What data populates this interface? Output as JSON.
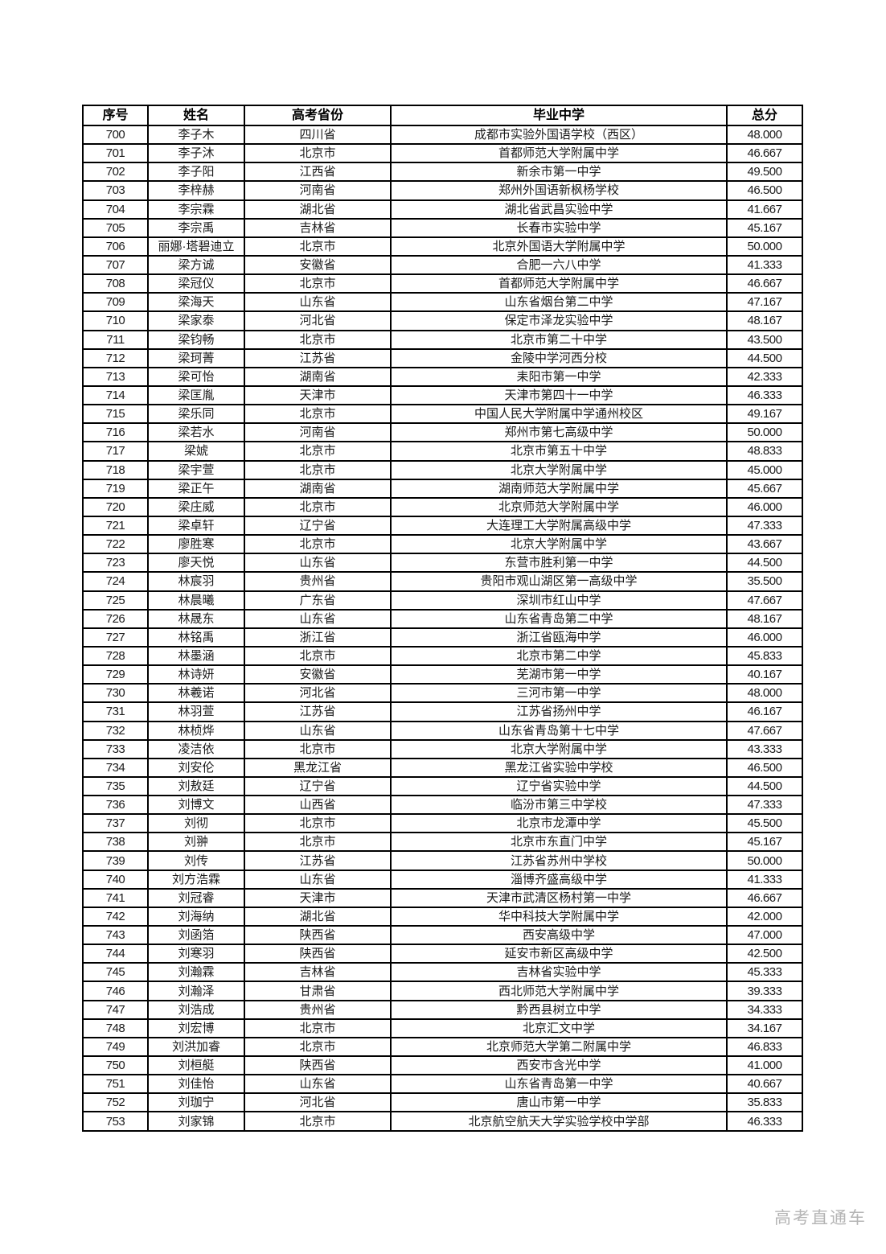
{
  "table": {
    "columns": [
      "序号",
      "姓名",
      "高考省份",
      "毕业中学",
      "总分"
    ],
    "rows": [
      [
        "700",
        "李子木",
        "四川省",
        "成都市实验外国语学校（西区）",
        "48.000"
      ],
      [
        "701",
        "李子沐",
        "北京市",
        "首都师范大学附属中学",
        "46.667"
      ],
      [
        "702",
        "李子阳",
        "江西省",
        "新余市第一中学",
        "49.500"
      ],
      [
        "703",
        "李梓赫",
        "河南省",
        "郑州外国语新枫杨学校",
        "46.500"
      ],
      [
        "704",
        "李宗霖",
        "湖北省",
        "湖北省武昌实验中学",
        "41.667"
      ],
      [
        "705",
        "李宗禹",
        "吉林省",
        "长春市实验中学",
        "45.167"
      ],
      [
        "706",
        "丽娜·塔碧迪立",
        "北京市",
        "北京外国语大学附属中学",
        "50.000"
      ],
      [
        "707",
        "梁方诚",
        "安徽省",
        "合肥一六八中学",
        "41.333"
      ],
      [
        "708",
        "梁冠仪",
        "北京市",
        "首都师范大学附属中学",
        "46.667"
      ],
      [
        "709",
        "梁海天",
        "山东省",
        "山东省烟台第二中学",
        "47.167"
      ],
      [
        "710",
        "梁家泰",
        "河北省",
        "保定市泽龙实验中学",
        "48.167"
      ],
      [
        "711",
        "梁钧畅",
        "北京市",
        "北京市第二十中学",
        "43.500"
      ],
      [
        "712",
        "梁珂菁",
        "江苏省",
        "金陵中学河西分校",
        "44.500"
      ],
      [
        "713",
        "梁可怡",
        "湖南省",
        "耒阳市第一中学",
        "42.333"
      ],
      [
        "714",
        "梁匡胤",
        "天津市",
        "天津市第四十一中学",
        "46.333"
      ],
      [
        "715",
        "梁乐同",
        "北京市",
        "中国人民大学附属中学通州校区",
        "49.167"
      ],
      [
        "716",
        "梁若水",
        "河南省",
        "郑州市第七高级中学",
        "50.000"
      ],
      [
        "717",
        "梁婋",
        "北京市",
        "北京市第五十中学",
        "48.833"
      ],
      [
        "718",
        "梁宇萱",
        "北京市",
        "北京大学附属中学",
        "45.000"
      ],
      [
        "719",
        "梁正午",
        "湖南省",
        "湖南师范大学附属中学",
        "45.667"
      ],
      [
        "720",
        "梁庄威",
        "北京市",
        "北京师范大学附属中学",
        "46.000"
      ],
      [
        "721",
        "梁卓轩",
        "辽宁省",
        "大连理工大学附属高级中学",
        "47.333"
      ],
      [
        "722",
        "廖胜寒",
        "北京市",
        "北京大学附属中学",
        "43.667"
      ],
      [
        "723",
        "廖天悦",
        "山东省",
        "东营市胜利第一中学",
        "44.500"
      ],
      [
        "724",
        "林宸羽",
        "贵州省",
        "贵阳市观山湖区第一高级中学",
        "35.500"
      ],
      [
        "725",
        "林晨曦",
        "广东省",
        "深圳市红山中学",
        "47.667"
      ],
      [
        "726",
        "林晟东",
        "山东省",
        "山东省青岛第二中学",
        "48.167"
      ],
      [
        "727",
        "林铭禹",
        "浙江省",
        "浙江省瓯海中学",
        "46.000"
      ],
      [
        "728",
        "林墨涵",
        "北京市",
        "北京市第二中学",
        "45.833"
      ],
      [
        "729",
        "林诗妍",
        "安徽省",
        "芜湖市第一中学",
        "40.167"
      ],
      [
        "730",
        "林羲诺",
        "河北省",
        "三河市第一中学",
        "48.000"
      ],
      [
        "731",
        "林羽萱",
        "江苏省",
        "江苏省扬州中学",
        "46.167"
      ],
      [
        "732",
        "林桢烨",
        "山东省",
        "山东省青岛第十七中学",
        "47.667"
      ],
      [
        "733",
        "凌洁依",
        "北京市",
        "北京大学附属中学",
        "43.333"
      ],
      [
        "734",
        "刘安伦",
        "黑龙江省",
        "黑龙江省实验中学校",
        "46.500"
      ],
      [
        "735",
        "刘敖廷",
        "辽宁省",
        "辽宁省实验中学",
        "44.500"
      ],
      [
        "736",
        "刘博文",
        "山西省",
        "临汾市第三中学校",
        "47.333"
      ],
      [
        "737",
        "刘彻",
        "北京市",
        "北京市龙潭中学",
        "45.500"
      ],
      [
        "738",
        "刘翀",
        "北京市",
        "北京市东直门中学",
        "45.167"
      ],
      [
        "739",
        "刘传",
        "江苏省",
        "江苏省苏州中学校",
        "50.000"
      ],
      [
        "740",
        "刘方浩霖",
        "山东省",
        "淄博齐盛高级中学",
        "41.333"
      ],
      [
        "741",
        "刘冠睿",
        "天津市",
        "天津市武清区杨村第一中学",
        "46.667"
      ],
      [
        "742",
        "刘海纳",
        "湖北省",
        "华中科技大学附属中学",
        "42.000"
      ],
      [
        "743",
        "刘函箔",
        "陕西省",
        "西安高级中学",
        "47.000"
      ],
      [
        "744",
        "刘寒羽",
        "陕西省",
        "延安市新区高级中学",
        "42.500"
      ],
      [
        "745",
        "刘瀚霖",
        "吉林省",
        "吉林省实验中学",
        "45.333"
      ],
      [
        "746",
        "刘瀚泽",
        "甘肃省",
        "西北师范大学附属中学",
        "39.333"
      ],
      [
        "747",
        "刘浩成",
        "贵州省",
        "黔西县树立中学",
        "34.333"
      ],
      [
        "748",
        "刘宏博",
        "北京市",
        "北京汇文中学",
        "34.167"
      ],
      [
        "749",
        "刘洪加睿",
        "北京市",
        "北京师范大学第二附属中学",
        "46.833"
      ],
      [
        "750",
        "刘桓艇",
        "陕西省",
        "西安市含光中学",
        "41.000"
      ],
      [
        "751",
        "刘佳怡",
        "山东省",
        "山东省青岛第一中学",
        "40.667"
      ],
      [
        "752",
        "刘珈宁",
        "河北省",
        "唐山市第一中学",
        "35.833"
      ],
      [
        "753",
        "刘家锦",
        "北京市",
        "北京航空航天大学实验学校中学部",
        "46.333"
      ]
    ],
    "cell_keys": [
      "no",
      "name",
      "province",
      "school",
      "score"
    ]
  },
  "watermark": {
    "label": "高考直通车",
    "color": "#b5b5b5"
  }
}
